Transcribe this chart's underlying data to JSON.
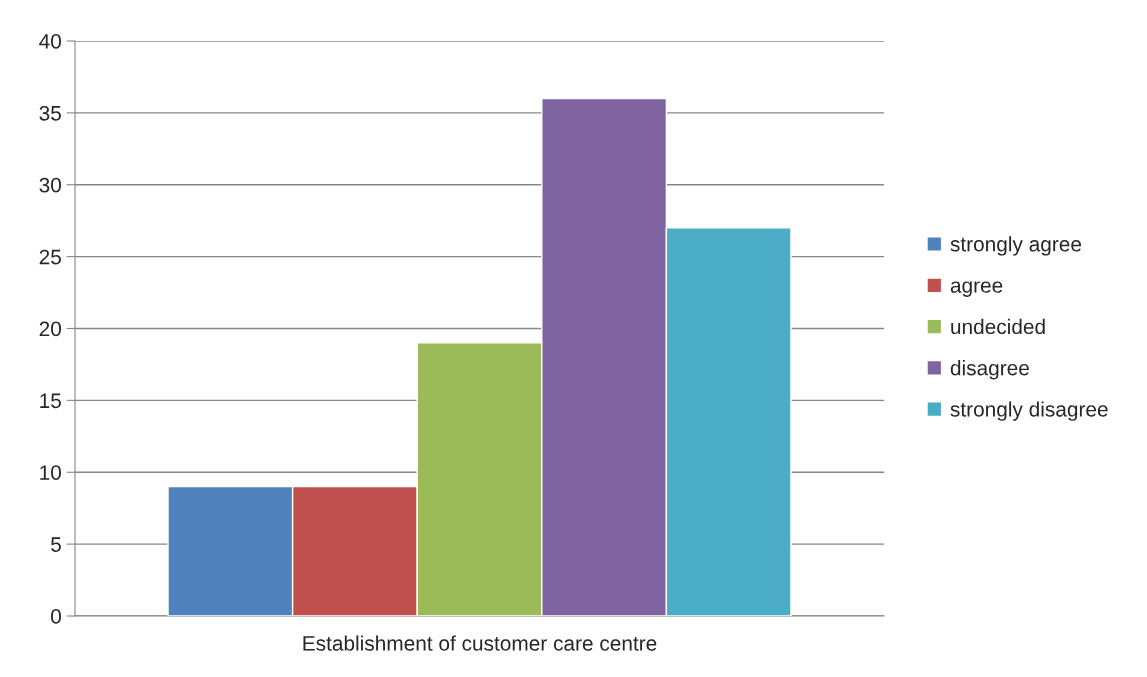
{
  "chart_data": {
    "type": "bar",
    "categories": [
      "Establishment of customer care centre"
    ],
    "series": [
      {
        "name": "strongly agree",
        "color": "#4f81bd",
        "values": [
          9
        ]
      },
      {
        "name": "agree",
        "color": "#c0504d",
        "values": [
          9
        ]
      },
      {
        "name": "undecided",
        "color": "#9bbb59",
        "values": [
          19
        ]
      },
      {
        "name": "disagree",
        "color": "#8064a2",
        "values": [
          36
        ]
      },
      {
        "name": "strongly disagree",
        "color": "#4bacc6",
        "values": [
          27
        ]
      }
    ],
    "ylim": [
      0,
      40
    ],
    "yticks": [
      0,
      5,
      10,
      15,
      20,
      25,
      30,
      35,
      40
    ],
    "grid": "y",
    "legend": "right"
  }
}
